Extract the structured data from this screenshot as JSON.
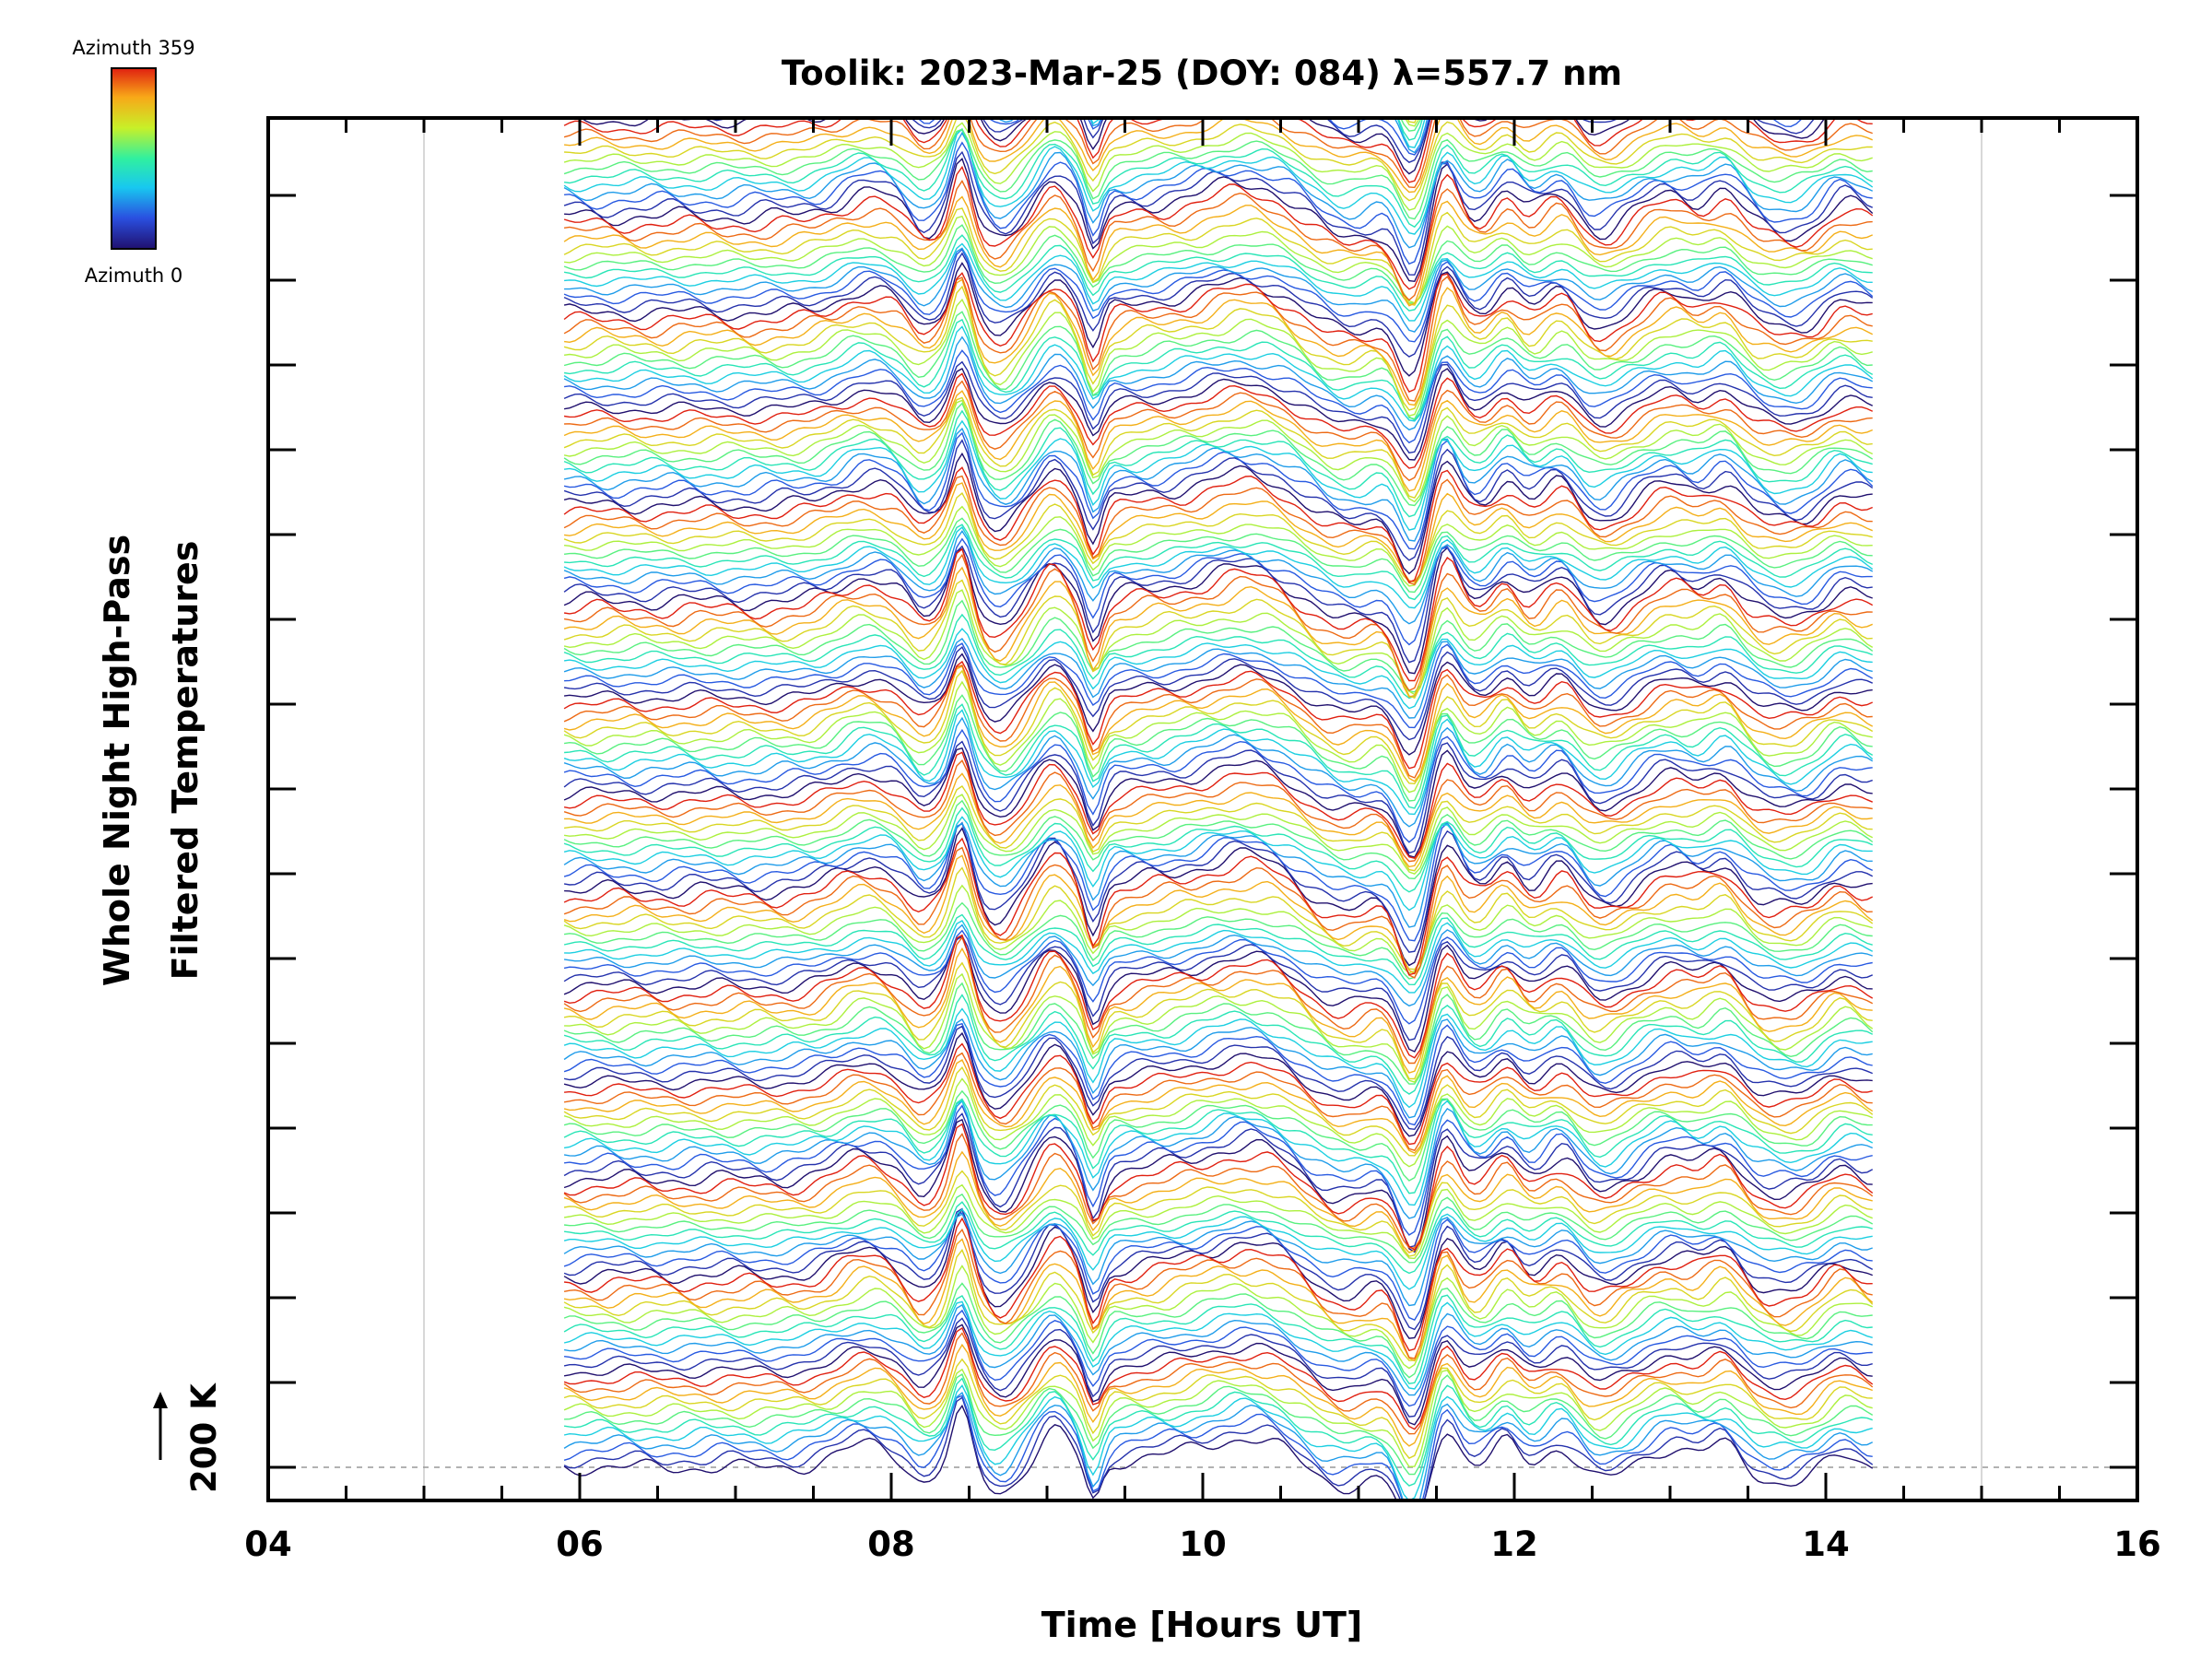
{
  "chart_data": {
    "type": "line",
    "title": "Toolik: 2023-Mar-25 (DOY: 084) λ=557.7 nm",
    "xlabel": "Time [Hours UT]",
    "ylabel_line1": "Whole Night High-Pass",
    "ylabel_line2": "Filtered Temperatures",
    "scale_bar_label": "200 K",
    "xlim": [
      4,
      16
    ],
    "x_ticks": [
      "04",
      "06",
      "08",
      "10",
      "12",
      "14",
      "16"
    ],
    "x_gridlines": [
      5,
      15
    ],
    "data_start_hour": 5.9,
    "data_end_hour": 14.3,
    "stack_groups": 15,
    "colorbar": {
      "top_label": "Azimuth 359",
      "bottom_label": "Azimuth 0",
      "range": [
        0,
        359
      ],
      "colors": [
        "#20106e",
        "#2a4fe0",
        "#18c8f0",
        "#30f0a0",
        "#c8f028",
        "#f8a818",
        "#e02010"
      ]
    },
    "colors": {
      "axis": "#000000",
      "grid": "#cccccc"
    }
  }
}
